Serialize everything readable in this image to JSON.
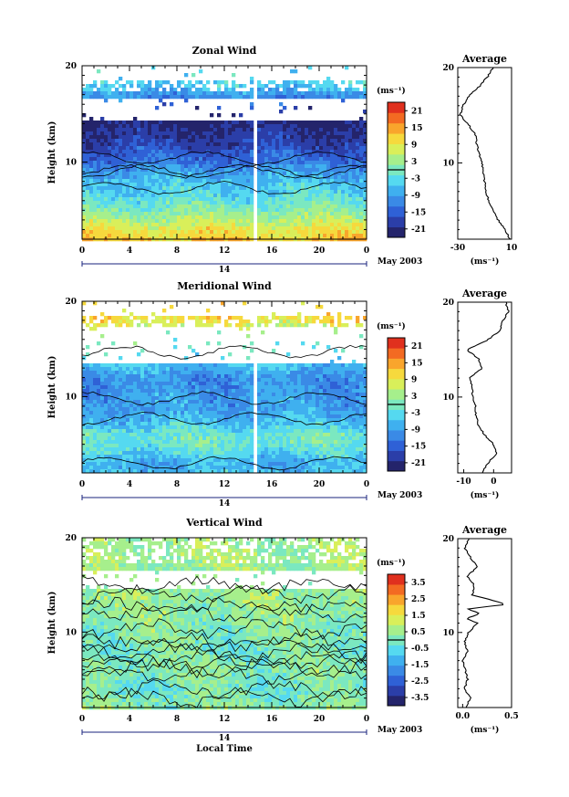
{
  "figure": {
    "date_label": "May 2003",
    "day_label": "14",
    "xlabel": "Local Time"
  },
  "colors": {
    "scale": [
      "#24246b",
      "#2b3ea8",
      "#2f61d6",
      "#3a8ae6",
      "#3fb0ef",
      "#55d9f0",
      "#7be8c0",
      "#a6ef8c",
      "#d9ef5a",
      "#f6d93d",
      "#f9a52c",
      "#f36a22",
      "#e0301e"
    ],
    "missing": "#ffffff",
    "contour": "#000000"
  },
  "chart_data": [
    {
      "type": "heatmap",
      "title": "Zonal Wind",
      "xlabel": "",
      "ylabel": "Height (km)",
      "x_ticks": [
        "0",
        "4",
        "8",
        "12",
        "16",
        "20",
        "0"
      ],
      "xlim_hours": [
        0,
        24
      ],
      "y_ticks": [
        "10",
        "20"
      ],
      "ylim": [
        2,
        20
      ],
      "colorbar": {
        "unit": "(ms⁻¹)",
        "ticks": [
          "21",
          "15",
          "9",
          "3",
          "-3",
          "-9",
          "-15",
          "-21"
        ],
        "range": [
          -24,
          24
        ]
      },
      "field_profile": {
        "heights": [
          2,
          3,
          4,
          5,
          6,
          7,
          8,
          9,
          10,
          11,
          12,
          13,
          14,
          15,
          16,
          17,
          18
        ],
        "values": [
          12,
          9,
          5,
          1,
          -2,
          -4,
          -6,
          -9,
          -13,
          -16,
          -18,
          -20,
          -22,
          -24,
          -14,
          -10,
          -5
        ]
      },
      "missing_height_ranges": [
        [
          14.5,
          16.5
        ],
        [
          18.5,
          20
        ]
      ],
      "gap_hours": [
        14.3,
        14.6
      ],
      "average_profile": {
        "title": "Average",
        "xlabel": "(ms⁻¹)",
        "x_ticks": [
          "-30",
          "10"
        ],
        "xlim": [
          -30,
          10
        ],
        "y_ticks": [
          "10",
          "20"
        ],
        "heights": [
          2,
          3,
          4,
          5,
          6,
          7,
          8,
          9,
          10,
          11,
          12,
          13,
          14,
          15,
          16,
          17,
          18,
          19,
          20
        ],
        "values": [
          9,
          5,
          0,
          -4,
          -7,
          -9,
          -10,
          -11,
          -12,
          -14,
          -16,
          -17,
          -22,
          -28,
          -26,
          -22,
          -14,
          -8,
          -4
        ]
      }
    },
    {
      "type": "heatmap",
      "title": "Meridional Wind",
      "xlabel": "",
      "ylabel": "Height (km)",
      "x_ticks": [
        "0",
        "4",
        "8",
        "12",
        "16",
        "20",
        "0"
      ],
      "xlim_hours": [
        0,
        24
      ],
      "y_ticks": [
        "10",
        "20"
      ],
      "ylim": [
        2,
        20
      ],
      "colorbar": {
        "unit": "(ms⁻¹)",
        "ticks": [
          "21",
          "15",
          "9",
          "3",
          "-3",
          "-9",
          "-15",
          "-21"
        ],
        "range": [
          -24,
          24
        ]
      },
      "field_profile": {
        "heights": [
          2,
          3,
          4,
          5,
          6,
          7,
          8,
          9,
          10,
          11,
          12,
          13,
          14,
          15,
          16,
          17,
          18
        ],
        "values": [
          -6,
          -8,
          -4,
          -1,
          -1,
          -5,
          -8,
          -9,
          -9,
          -10,
          -10,
          -7,
          -4,
          0,
          -3,
          4,
          10
        ]
      },
      "missing_height_ranges": [
        [
          13.5,
          17.2
        ],
        [
          18.5,
          20
        ]
      ],
      "gap_hours": [
        14.3,
        14.6
      ],
      "average_profile": {
        "title": "Average",
        "xlabel": "(ms⁻¹)",
        "x_ticks": [
          "-10",
          "0"
        ],
        "xlim": [
          -12,
          6
        ],
        "y_ticks": [
          "10",
          "20"
        ],
        "heights": [
          2,
          3,
          4,
          5,
          6,
          7,
          8,
          9,
          10,
          11,
          12,
          13,
          14,
          15,
          16,
          17,
          18,
          19,
          20
        ],
        "values": [
          -4,
          -2,
          1,
          0,
          -3,
          -5,
          -6,
          -6,
          -7,
          -7,
          -8,
          -4,
          -5,
          -9,
          -2,
          2,
          3,
          5,
          4
        ]
      }
    },
    {
      "type": "heatmap",
      "title": "Vertical Wind",
      "xlabel": "Local Time",
      "ylabel": "Height (km)",
      "x_ticks": [
        "0",
        "4",
        "8",
        "12",
        "16",
        "20",
        "0"
      ],
      "xlim_hours": [
        0,
        24
      ],
      "y_ticks": [
        "10",
        "20"
      ],
      "ylim": [
        2,
        20
      ],
      "colorbar": {
        "unit": "(ms⁻¹)",
        "ticks": [
          "3.5",
          "2.5",
          "1.5",
          "0.5",
          "-0.5",
          "-1.5",
          "-2.5",
          "-3.5"
        ],
        "range": [
          -4,
          4
        ]
      },
      "field_profile": {
        "heights": [
          2,
          4,
          6,
          8,
          10,
          12,
          14,
          16,
          18
        ],
        "values": [
          0.3,
          -0.1,
          0.3,
          0.0,
          0.2,
          0.4,
          0.5,
          0.4,
          0.6
        ]
      },
      "missing_height_ranges": [
        [
          14.5,
          16.5
        ]
      ],
      "gap_hours": [],
      "average_profile": {
        "title": "Average",
        "xlabel": "(ms⁻¹)",
        "x_ticks": [
          "0.0",
          "0.5"
        ],
        "xlim": [
          -0.05,
          0.5
        ],
        "y_ticks": [
          "10",
          "20"
        ],
        "heights": [
          2,
          3,
          4,
          5,
          6,
          7,
          8,
          9,
          10,
          11,
          11.5,
          12,
          12.5,
          13,
          14,
          15,
          16,
          17,
          18,
          19,
          20
        ],
        "values": [
          0.03,
          0.08,
          0.02,
          0.05,
          0.03,
          0.0,
          0.05,
          0.02,
          0.06,
          0.15,
          0.04,
          0.18,
          0.05,
          0.45,
          0.1,
          0.12,
          0.05,
          0.15,
          0.08,
          0.02,
          0.06
        ]
      }
    }
  ]
}
